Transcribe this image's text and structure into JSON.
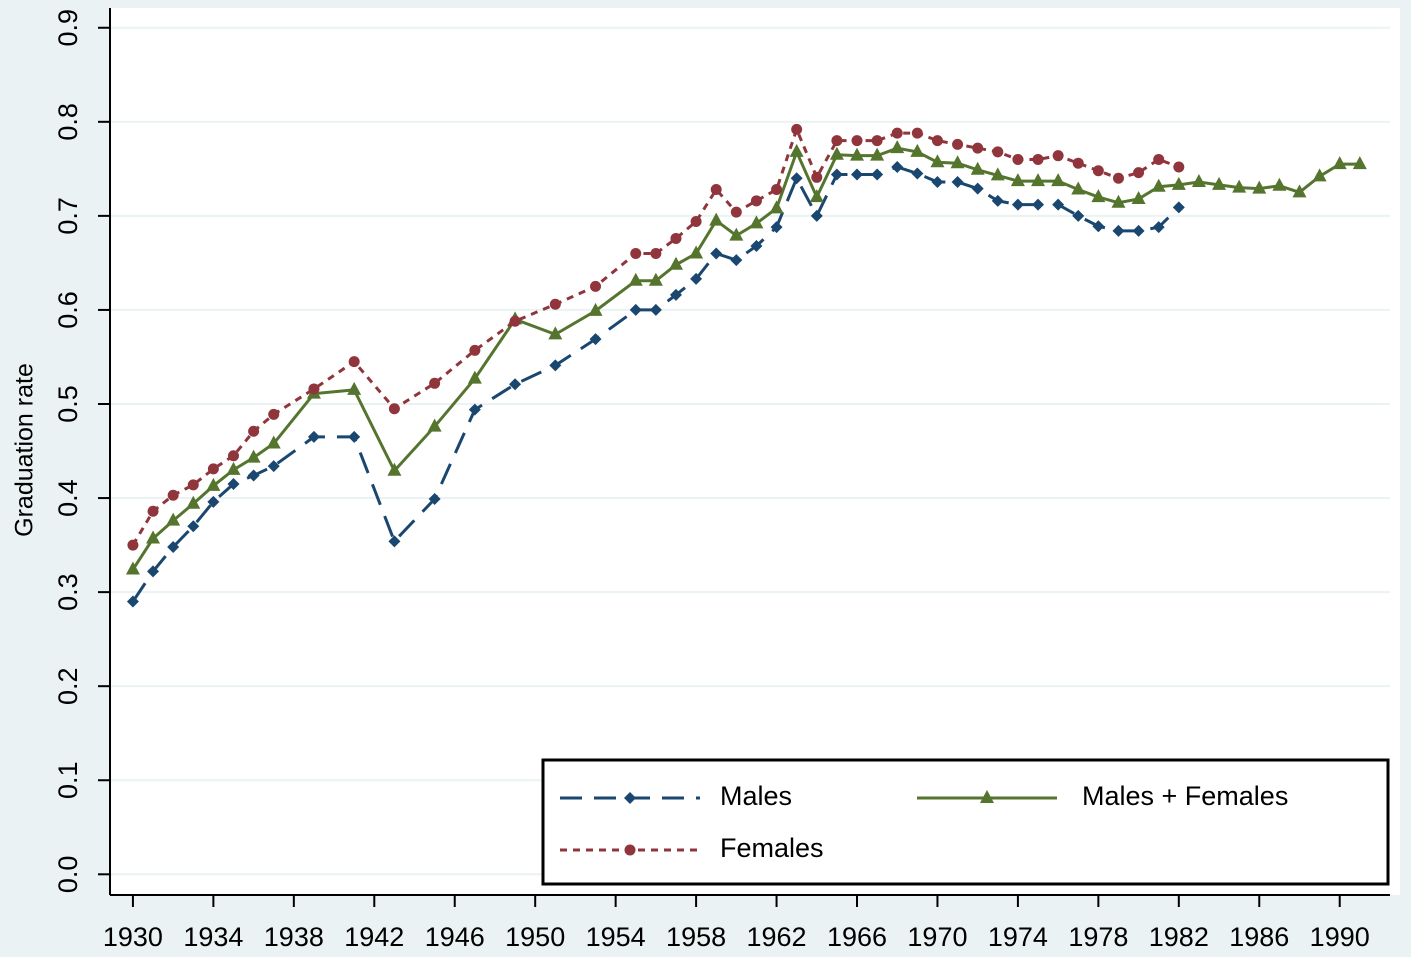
{
  "chart_data": {
    "type": "line",
    "y_label": "Graduation rate",
    "xlim": [
      1928.86,
      1992.5
    ],
    "ylim": [
      -0.022,
      0.921
    ],
    "xticks": [
      1930,
      1934,
      1938,
      1942,
      1946,
      1950,
      1954,
      1958,
      1962,
      1966,
      1970,
      1974,
      1978,
      1982,
      1986,
      1990
    ],
    "yticks": [
      {
        "value": 0,
        "label": "0.0"
      },
      0.1,
      0.2,
      0.3,
      0.4,
      0.5,
      0.6,
      0.7,
      0.8,
      0.9
    ],
    "grid": true,
    "legend": "bottom-right",
    "series": [
      {
        "name": "Males",
        "color": "#1a476f",
        "marker": "diamond",
        "line_style": "dashed",
        "x": [
          1930,
          1931,
          1932,
          1933,
          1934,
          1935,
          1936,
          1937,
          1939,
          1941,
          1943,
          1945,
          1947,
          1949,
          1951,
          1953,
          1955,
          1956,
          1957,
          1958,
          1959,
          1960,
          1961,
          1962,
          1963,
          1964,
          1965,
          1966,
          1967,
          1968,
          1969,
          1970,
          1971,
          1972,
          1973,
          1974,
          1975,
          1976,
          1977,
          1978,
          1979,
          1980,
          1981,
          1982
        ],
        "values": [
          0.29,
          0.322,
          0.348,
          0.37,
          0.396,
          0.415,
          0.424,
          0.434,
          0.465,
          0.465,
          0.354,
          0.399,
          0.494,
          0.521,
          0.541,
          0.569,
          0.6,
          0.6,
          0.616,
          0.633,
          0.66,
          0.653,
          0.668,
          0.688,
          0.74,
          0.7,
          0.744,
          0.744,
          0.744,
          0.752,
          0.745,
          0.736,
          0.736,
          0.729,
          0.716,
          0.712,
          0.712,
          0.712,
          0.7,
          0.689,
          0.684,
          0.684,
          0.688,
          0.709
        ]
      },
      {
        "name": "Males + Females",
        "color": "#55752f",
        "marker": "triangle",
        "line_style": "solid",
        "x": [
          1930,
          1931,
          1932,
          1933,
          1934,
          1935,
          1936,
          1937,
          1939,
          1941,
          1943,
          1945,
          1947,
          1949,
          1951,
          1953,
          1955,
          1956,
          1957,
          1958,
          1959,
          1960,
          1961,
          1962,
          1963,
          1964,
          1965,
          1966,
          1967,
          1968,
          1969,
          1970,
          1971,
          1972,
          1973,
          1974,
          1975,
          1976,
          1977,
          1978,
          1979,
          1980,
          1981,
          1982,
          1983,
          1984,
          1985,
          1986,
          1987,
          1988,
          1989,
          1990,
          1991
        ],
        "values": [
          0.324,
          0.357,
          0.376,
          0.394,
          0.413,
          0.43,
          0.443,
          0.458,
          0.511,
          0.515,
          0.429,
          0.476,
          0.527,
          0.59,
          0.574,
          0.599,
          0.631,
          0.631,
          0.648,
          0.66,
          0.695,
          0.679,
          0.692,
          0.708,
          0.768,
          0.72,
          0.765,
          0.764,
          0.764,
          0.772,
          0.768,
          0.757,
          0.756,
          0.749,
          0.743,
          0.737,
          0.737,
          0.737,
          0.728,
          0.72,
          0.714,
          0.718,
          0.731,
          0.733,
          0.736,
          0.733,
          0.73,
          0.729,
          0.732,
          0.725,
          0.742,
          0.755,
          0.755
        ]
      },
      {
        "name": "Females",
        "color": "#90353b",
        "marker": "circle",
        "line_style": "dotted",
        "x": [
          1930,
          1931,
          1932,
          1933,
          1934,
          1935,
          1936,
          1937,
          1939,
          1941,
          1943,
          1945,
          1947,
          1949,
          1951,
          1953,
          1955,
          1956,
          1957,
          1958,
          1959,
          1960,
          1961,
          1962,
          1963,
          1964,
          1965,
          1966,
          1967,
          1968,
          1969,
          1970,
          1971,
          1972,
          1973,
          1974,
          1975,
          1976,
          1977,
          1978,
          1979,
          1980,
          1981,
          1982
        ],
        "values": [
          0.35,
          0.386,
          0.403,
          0.414,
          0.431,
          0.445,
          0.471,
          0.489,
          0.516,
          0.545,
          0.495,
          0.522,
          0.557,
          0.588,
          0.606,
          0.625,
          0.66,
          0.66,
          0.676,
          0.694,
          0.728,
          0.704,
          0.716,
          0.728,
          0.792,
          0.741,
          0.78,
          0.78,
          0.78,
          0.788,
          0.788,
          0.78,
          0.776,
          0.772,
          0.768,
          0.76,
          0.76,
          0.764,
          0.756,
          0.748,
          0.74,
          0.746,
          0.76,
          0.752
        ]
      }
    ]
  }
}
